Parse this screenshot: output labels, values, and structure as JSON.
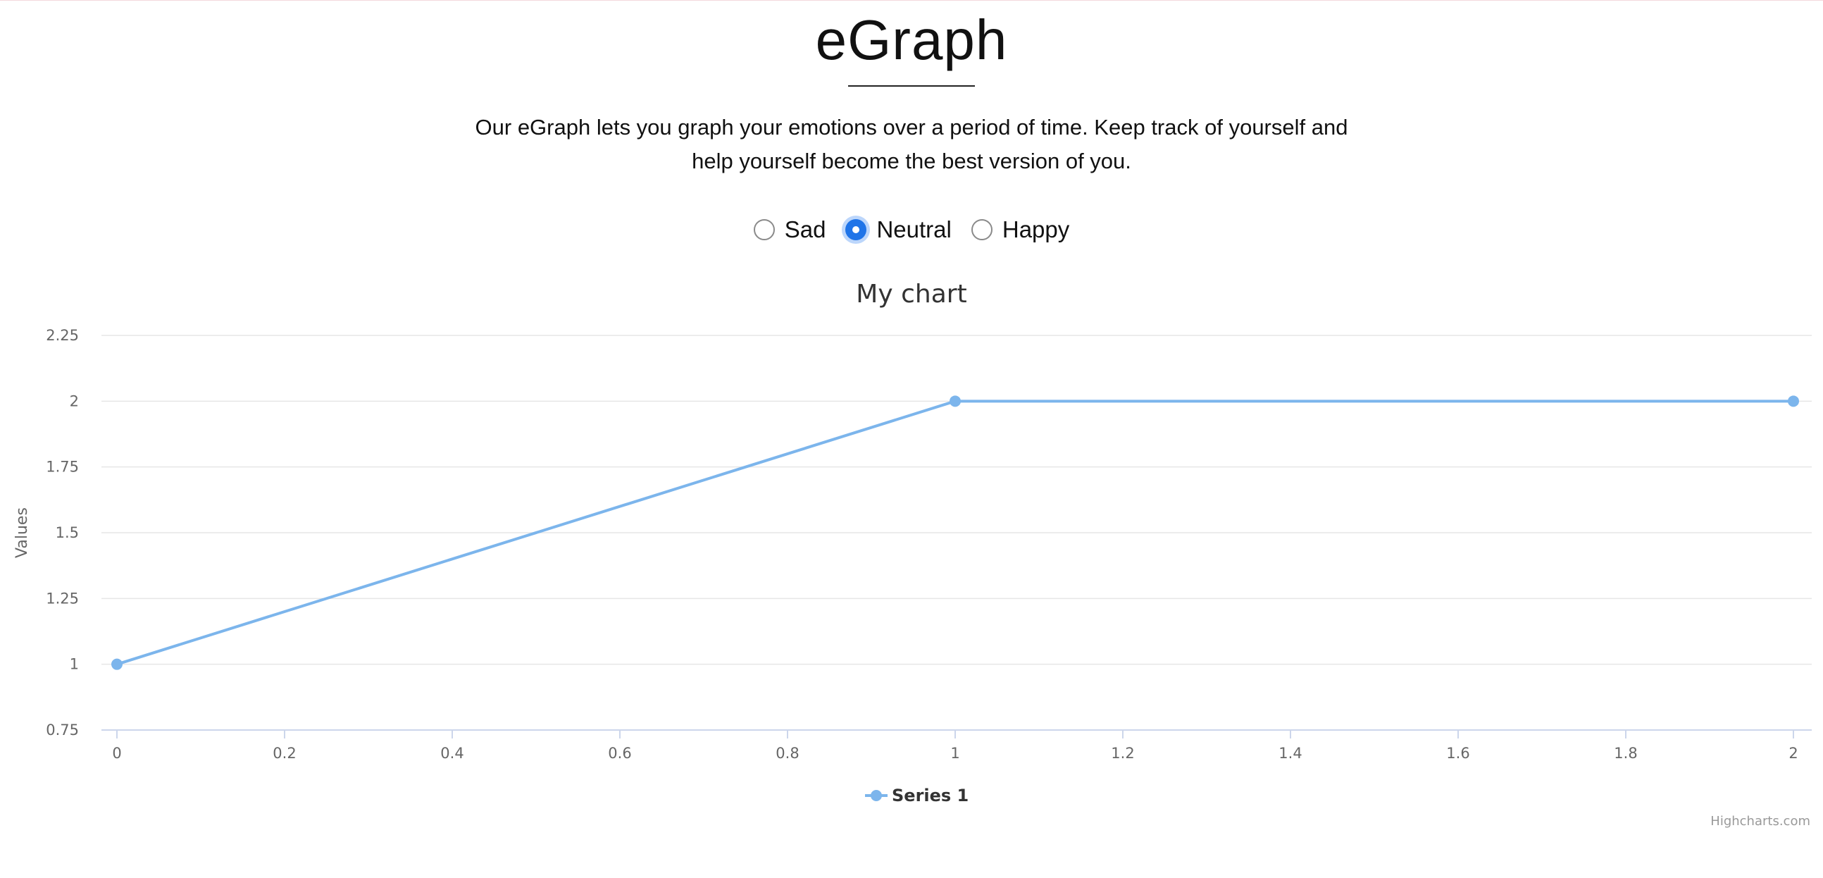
{
  "header": {
    "title": "eGraph",
    "intro_line1": "Our eGraph lets you graph your emotions over a period of time. Keep track of yourself and",
    "intro_line2": "help yourself become the best version of you."
  },
  "mood": {
    "options": [
      {
        "label": "Sad",
        "checked": false
      },
      {
        "label": "Neutral",
        "checked": true
      },
      {
        "label": "Happy",
        "checked": false
      }
    ],
    "accent_color": "#1f74e8"
  },
  "chart_data": {
    "type": "line",
    "title": "My chart",
    "xlabel": "",
    "ylabel": "Values",
    "xlim": [
      0,
      2
    ],
    "ylim": [
      0.75,
      2.25
    ],
    "x_ticks": [
      "0",
      "0.2",
      "0.4",
      "0.6",
      "0.8",
      "1",
      "1.2",
      "1.4",
      "1.6",
      "1.8",
      "2"
    ],
    "y_ticks": [
      "0.75",
      "1",
      "1.25",
      "1.5",
      "1.75",
      "2",
      "2.25"
    ],
    "grid": true,
    "legend_position": "bottom-center",
    "series": [
      {
        "name": "Series 1",
        "color": "#7cb5ec",
        "x": [
          0,
          1,
          2
        ],
        "y": [
          1,
          2,
          2
        ]
      }
    ],
    "credits": "Highcharts.com"
  }
}
